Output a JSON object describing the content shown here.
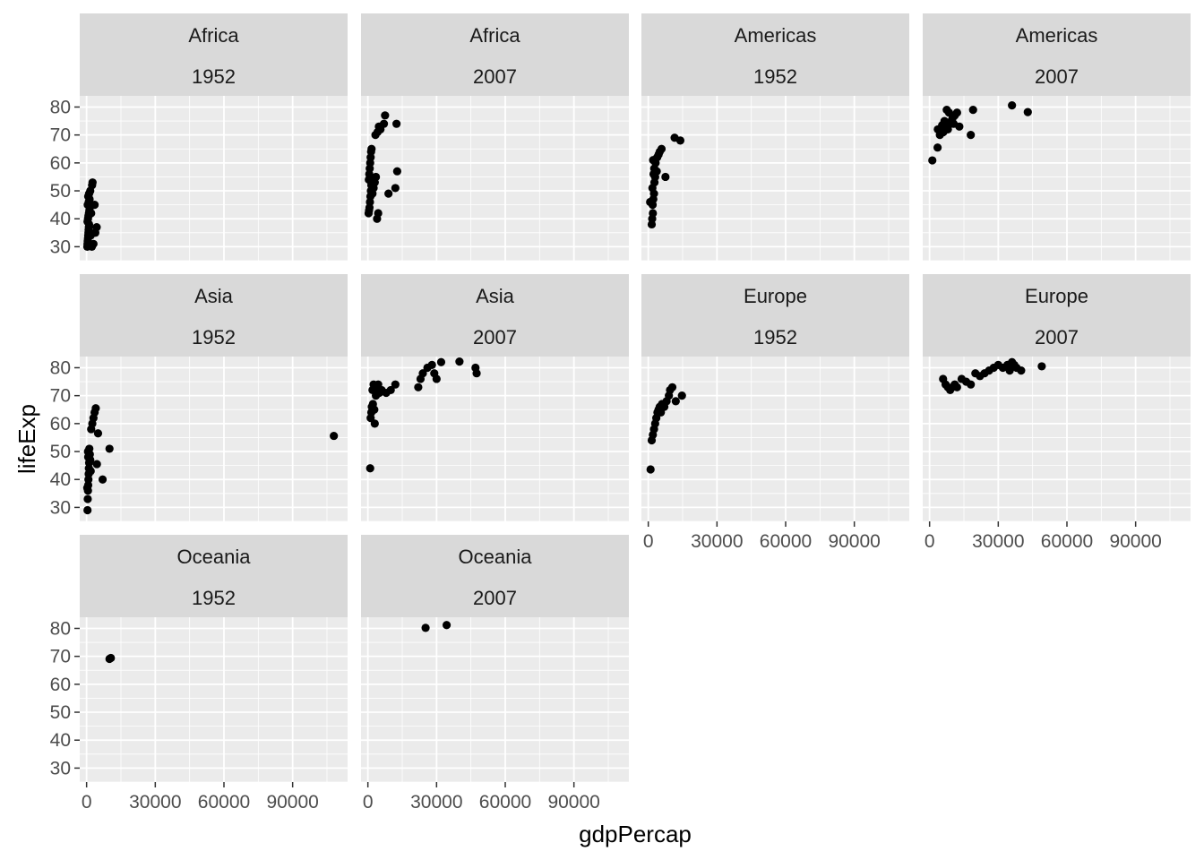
{
  "chart_data": {
    "type": "scatter",
    "xlabel": "gdpPercap",
    "ylabel": "lifeExp",
    "xlim": [
      -3000,
      114000
    ],
    "ylim": [
      25,
      84
    ],
    "x_ticks": [
      0,
      30000,
      60000,
      90000
    ],
    "y_ticks": [
      30,
      40,
      50,
      60,
      70,
      80
    ],
    "grid": true,
    "colors": {
      "panel_bg": "#EBEBEB",
      "strip_bg": "#D9D9D9",
      "grid": "#FFFFFF",
      "point": "#000000"
    },
    "facets": [
      {
        "continent": "Africa",
        "year": "1952",
        "points": [
          [
            300,
            30
          ],
          [
            400,
            31
          ],
          [
            500,
            32
          ],
          [
            600,
            33
          ],
          [
            700,
            34
          ],
          [
            800,
            35
          ],
          [
            900,
            36
          ],
          [
            1000,
            37
          ],
          [
            1100,
            38
          ],
          [
            400,
            39
          ],
          [
            600,
            40
          ],
          [
            800,
            41
          ],
          [
            1000,
            42
          ],
          [
            1200,
            43
          ],
          [
            1400,
            44
          ],
          [
            500,
            45
          ],
          [
            900,
            46
          ],
          [
            1300,
            47
          ],
          [
            700,
            48
          ],
          [
            1100,
            49
          ],
          [
            1600,
            50
          ],
          [
            2400,
            52
          ],
          [
            2600,
            53
          ],
          [
            3500,
            45
          ],
          [
            4400,
            37
          ],
          [
            2300,
            30
          ],
          [
            3000,
            31
          ],
          [
            3800,
            35
          ],
          [
            2000,
            42
          ],
          [
            1800,
            34
          ]
        ]
      },
      {
        "continent": "Africa",
        "year": "2007",
        "points": [
          [
            300,
            42
          ],
          [
            500,
            43
          ],
          [
            700,
            44
          ],
          [
            900,
            46
          ],
          [
            1100,
            48
          ],
          [
            1300,
            50
          ],
          [
            1500,
            52
          ],
          [
            400,
            54
          ],
          [
            600,
            56
          ],
          [
            800,
            58
          ],
          [
            1000,
            60
          ],
          [
            1200,
            62
          ],
          [
            1400,
            64
          ],
          [
            1600,
            65
          ],
          [
            2000,
            49
          ],
          [
            2500,
            51
          ],
          [
            3000,
            53
          ],
          [
            3500,
            55
          ],
          [
            4000,
            40
          ],
          [
            4500,
            42
          ],
          [
            3300,
            70
          ],
          [
            4200,
            71
          ],
          [
            5500,
            72
          ],
          [
            7000,
            74
          ],
          [
            7500,
            77
          ],
          [
            9000,
            49
          ],
          [
            12000,
            51
          ],
          [
            12500,
            74
          ],
          [
            12800,
            57
          ],
          [
            4800,
            73
          ]
        ]
      },
      {
        "continent": "Americas",
        "year": "1952",
        "points": [
          [
            1500,
            38
          ],
          [
            1700,
            40
          ],
          [
            2000,
            42
          ],
          [
            1900,
            45
          ],
          [
            2200,
            47
          ],
          [
            2500,
            49
          ],
          [
            1800,
            51
          ],
          [
            2700,
            53
          ],
          [
            3000,
            55
          ],
          [
            2300,
            56
          ],
          [
            2600,
            58
          ],
          [
            3200,
            60
          ],
          [
            3900,
            62
          ],
          [
            4500,
            63
          ],
          [
            5000,
            64
          ],
          [
            5800,
            65
          ],
          [
            7500,
            55
          ],
          [
            11500,
            69
          ],
          [
            14000,
            68
          ],
          [
            800,
            46
          ],
          [
            2100,
            61
          ],
          [
            3700,
            57
          ]
        ]
      },
      {
        "continent": "Americas",
        "year": "2007",
        "points": [
          [
            1200,
            60.9
          ],
          [
            3500,
            65.5
          ],
          [
            4500,
            70
          ],
          [
            5000,
            72
          ],
          [
            6000,
            71
          ],
          [
            7000,
            73
          ],
          [
            8000,
            72
          ],
          [
            9000,
            74
          ],
          [
            9500,
            75
          ],
          [
            10000,
            76
          ],
          [
            11000,
            77
          ],
          [
            12000,
            78
          ],
          [
            7500,
            79
          ],
          [
            8500,
            78
          ],
          [
            13000,
            73
          ],
          [
            18000,
            70
          ],
          [
            19000,
            79
          ],
          [
            36000,
            80.6
          ],
          [
            42900,
            78.2
          ],
          [
            3600,
            72
          ],
          [
            6500,
            75
          ],
          [
            5500,
            73.5
          ],
          [
            10500,
            74
          ]
        ]
      },
      {
        "continent": "Asia",
        "year": "1952",
        "points": [
          [
            400,
            29
          ],
          [
            500,
            33
          ],
          [
            600,
            36
          ],
          [
            700,
            38
          ],
          [
            800,
            40
          ],
          [
            900,
            42
          ],
          [
            1000,
            44
          ],
          [
            1100,
            46
          ],
          [
            700,
            48
          ],
          [
            600,
            50
          ],
          [
            1200,
            51
          ],
          [
            1400,
            49
          ],
          [
            1600,
            47
          ],
          [
            2000,
            58
          ],
          [
            2500,
            60
          ],
          [
            3000,
            62
          ],
          [
            3500,
            64
          ],
          [
            4000,
            65.5
          ],
          [
            5000,
            56.5
          ],
          [
            4500,
            45.5
          ],
          [
            7000,
            40
          ],
          [
            10000,
            51
          ],
          [
            108000,
            55.6
          ],
          [
            1800,
            43
          ],
          [
            300,
            37
          ]
        ]
      },
      {
        "continent": "Asia",
        "year": "2007",
        "points": [
          [
            1000,
            44
          ],
          [
            1200,
            62
          ],
          [
            1500,
            64
          ],
          [
            1700,
            66
          ],
          [
            2000,
            72
          ],
          [
            2500,
            74
          ],
          [
            3000,
            60
          ],
          [
            3500,
            70
          ],
          [
            4000,
            72
          ],
          [
            4500,
            74
          ],
          [
            5000,
            71
          ],
          [
            6000,
            72
          ],
          [
            8000,
            71
          ],
          [
            10000,
            72
          ],
          [
            12000,
            74
          ],
          [
            22000,
            73
          ],
          [
            23000,
            76
          ],
          [
            24000,
            78
          ],
          [
            26000,
            80
          ],
          [
            28000,
            81
          ],
          [
            29000,
            78
          ],
          [
            30000,
            76
          ],
          [
            32000,
            82
          ],
          [
            40000,
            82.2
          ],
          [
            47000,
            80
          ],
          [
            47500,
            78
          ],
          [
            2200,
            67
          ],
          [
            2800,
            65
          ]
        ]
      },
      {
        "continent": "Europe",
        "year": "1952",
        "points": [
          [
            1000,
            43.6
          ],
          [
            1500,
            54
          ],
          [
            2000,
            56
          ],
          [
            2500,
            58
          ],
          [
            3000,
            60
          ],
          [
            3500,
            62
          ],
          [
            4000,
            64
          ],
          [
            4500,
            65
          ],
          [
            5000,
            66
          ],
          [
            5500,
            64
          ],
          [
            6000,
            67
          ],
          [
            7000,
            66
          ],
          [
            8000,
            68
          ],
          [
            9000,
            70
          ],
          [
            9500,
            72
          ],
          [
            10500,
            73
          ],
          [
            12000,
            68
          ],
          [
            14700,
            70
          ]
        ]
      },
      {
        "continent": "Europe",
        "year": "2007",
        "points": [
          [
            5900,
            76
          ],
          [
            7000,
            74
          ],
          [
            8000,
            73
          ],
          [
            9000,
            72
          ],
          [
            10000,
            73
          ],
          [
            11000,
            74
          ],
          [
            12000,
            73
          ],
          [
            14000,
            76
          ],
          [
            16000,
            75
          ],
          [
            18000,
            74
          ],
          [
            20000,
            78
          ],
          [
            22000,
            77
          ],
          [
            24000,
            78
          ],
          [
            26000,
            79
          ],
          [
            28000,
            80
          ],
          [
            30000,
            81
          ],
          [
            32000,
            80
          ],
          [
            34000,
            81
          ],
          [
            35000,
            79
          ],
          [
            36000,
            82
          ],
          [
            37000,
            81
          ],
          [
            38000,
            80
          ],
          [
            40000,
            79
          ],
          [
            49000,
            80.5
          ]
        ]
      },
      {
        "continent": "Oceania",
        "year": "1952",
        "points": [
          [
            10000,
            69.1
          ],
          [
            10600,
            69.4
          ]
        ]
      },
      {
        "continent": "Oceania",
        "year": "2007",
        "points": [
          [
            25200,
            80.2
          ],
          [
            34400,
            81.2
          ]
        ]
      }
    ]
  }
}
